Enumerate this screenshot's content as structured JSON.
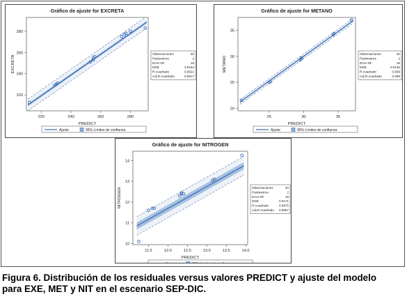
{
  "caption": {
    "line1": "Figura 6. Distribución de los residuales versus valores PREDICT y ajuste del modelo",
    "line2": "para EXE, MET y NIT en el escenario SEP-DIC."
  },
  "chart_data": [
    {
      "type": "scatter",
      "title": "Gráfico de ajuste for EXCRETA",
      "xlabel": "PREDICT",
      "ylabel": "EXCRETA",
      "xlim": [
        210,
        292
      ],
      "ylim": [
        205,
        293
      ],
      "x_ticks": [
        {
          "v": 220,
          "label": "220"
        },
        {
          "v": 240,
          "label": "240"
        },
        {
          "v": 260,
          "label": "260"
        },
        {
          "v": 280,
          "label": "280"
        }
      ],
      "y_ticks": [
        {
          "v": 220,
          "label": "220"
        },
        {
          "v": 240,
          "label": "240"
        },
        {
          "v": 260,
          "label": "260"
        },
        {
          "v": 280,
          "label": "280"
        }
      ],
      "fit": {
        "x0": 211,
        "y0": 210.5,
        "x1": 291,
        "y1": 288.5
      },
      "band": {
        "conf_halfwidth": 1.2,
        "pred_halfwidth": 5.5
      },
      "points": [
        [
          212,
          213
        ],
        [
          229,
          229
        ],
        [
          230,
          230
        ],
        [
          231,
          231
        ],
        [
          253,
          251
        ],
        [
          255,
          253
        ],
        [
          255,
          255
        ],
        [
          256,
          256
        ],
        [
          274,
          275
        ],
        [
          276,
          277
        ],
        [
          277,
          278
        ],
        [
          280,
          280
        ],
        [
          290,
          283
        ]
      ],
      "stats": [
        {
          "label": "Observaciones",
          "value": "20"
        },
        {
          "label": "Parámetros",
          "value": "2"
        },
        {
          "label": "Error DF",
          "value": "18"
        },
        {
          "label": "MSE",
          "value": "3.9164"
        },
        {
          "label": "R-cuadrado",
          "value": "0.9921"
        },
        {
          "label": "Adj R-cuadrado",
          "value": "0.9917"
        }
      ],
      "legend": [
        {
          "label": "Ajuste"
        },
        {
          "label": "95% Límites de confianza"
        }
      ]
    },
    {
      "type": "scatter",
      "title": "Gráfico de ajuste for METANO",
      "xlabel": "PREDICT",
      "ylabel": "METANO",
      "xlim": [
        20.5,
        37.5
      ],
      "ylim": [
        19.5,
        37.5
      ],
      "x_ticks": [
        {
          "v": 25,
          "label": "25"
        },
        {
          "v": 30,
          "label": "30"
        },
        {
          "v": 35,
          "label": "35"
        }
      ],
      "y_ticks": [
        {
          "v": 20,
          "label": "20"
        },
        {
          "v": 25,
          "label": "25"
        },
        {
          "v": 30,
          "label": "30"
        },
        {
          "v": 35,
          "label": "35"
        }
      ],
      "fit": {
        "x0": 20.8,
        "y0": 21.2,
        "x1": 37.2,
        "y1": 36.9
      },
      "band": {
        "conf_halfwidth": 0.12,
        "pred_halfwidth": 0.45
      },
      "points": [
        [
          21,
          21.5
        ],
        [
          25,
          25
        ],
        [
          25.2,
          25.1
        ],
        [
          29.5,
          29.3
        ],
        [
          29.6,
          29.5
        ],
        [
          29.7,
          29.7
        ],
        [
          34.3,
          34.2
        ],
        [
          34.4,
          34.4
        ],
        [
          36.9,
          37
        ]
      ],
      "stats": [
        {
          "label": "Observaciones",
          "value": "20"
        },
        {
          "label": "Parámetros",
          "value": "2"
        },
        {
          "label": "Error DF",
          "value": "18"
        },
        {
          "label": "MSE",
          "value": "0.0145"
        },
        {
          "label": "R-cuadrado",
          "value": "0.999"
        },
        {
          "label": "Adj R-cuadrado",
          "value": "0.999"
        }
      ],
      "legend": [
        {
          "label": "Ajuste"
        },
        {
          "label": "95% Límites de confianza"
        }
      ]
    },
    {
      "type": "scatter",
      "title": "Gráfico de ajuste for NITROGEN",
      "xlabel": "PREDICT",
      "ylabel": "NITROGEN",
      "xlim": [
        11.1,
        14.05
      ],
      "ylim": [
        9.95,
        14.45
      ],
      "x_ticks": [
        {
          "v": 11.5,
          "label": "11.5"
        },
        {
          "v": 12.0,
          "label": "12.0"
        },
        {
          "v": 12.5,
          "label": "12.5"
        },
        {
          "v": 13.0,
          "label": "13.0"
        },
        {
          "v": 13.5,
          "label": "13.5"
        },
        {
          "v": 14.0,
          "label": "14.0"
        }
      ],
      "y_ticks": [
        {
          "v": 10,
          "label": "10"
        },
        {
          "v": 11,
          "label": "11"
        },
        {
          "v": 12,
          "label": "12"
        },
        {
          "v": 13,
          "label": "13"
        },
        {
          "v": 14,
          "label": "14"
        }
      ],
      "fit": {
        "x0": 11.2,
        "y0": 10.85,
        "x1": 13.95,
        "y1": 13.75
      },
      "band": {
        "conf_halfwidth": 0.17,
        "pred_halfwidth": 0.45
      },
      "points": [
        [
          11.25,
          10.1
        ],
        [
          11.5,
          11.6
        ],
        [
          11.6,
          11.7
        ],
        [
          11.65,
          11.7
        ],
        [
          12.3,
          12.3
        ],
        [
          12.35,
          12.4
        ],
        [
          12.35,
          12.45
        ],
        [
          12.4,
          12.4
        ],
        [
          13.15,
          13.05
        ],
        [
          13.2,
          13.1
        ],
        [
          13.9,
          14.25
        ]
      ],
      "stats": [
        {
          "label": "Observaciones",
          "value": "20"
        },
        {
          "label": "Parámetros",
          "value": "2"
        },
        {
          "label": "Error DF",
          "value": "18"
        },
        {
          "label": "MSE",
          "value": "0.0171"
        },
        {
          "label": "R-cuadrado",
          "value": "0.9875"
        },
        {
          "label": "Adj R-cuadrado",
          "value": "0.9857"
        }
      ],
      "legend": [
        {
          "label": "Ajuste"
        },
        {
          "label": "95% Límites de confianza"
        }
      ]
    }
  ],
  "colors": {
    "fit_line": "#3d6fb5",
    "pred_band": "#b9c9e4",
    "conf_band": "#8fb0da",
    "marker": "#3d6fb5",
    "limit_dash": "#7f97c0"
  }
}
